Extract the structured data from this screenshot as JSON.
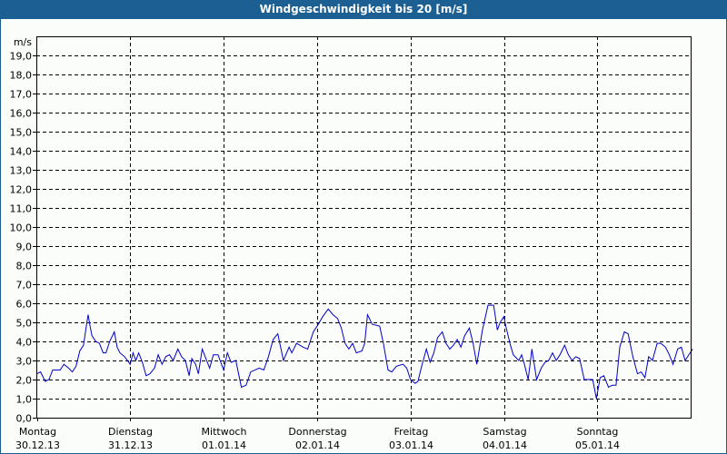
{
  "title": "Windgeschwindigkeit bis 20 [m/s]",
  "colors": {
    "title_bg": "#1c5f92",
    "title_fg": "#ffffff",
    "line": "#0000c8",
    "grid": "#000000",
    "background": "#fbfdfb"
  },
  "chart_data": {
    "type": "line",
    "title": "Windgeschwindigkeit bis 20 [m/s]",
    "xlabel": "",
    "ylabel": "m/s",
    "ylim": [
      0,
      20
    ],
    "yticks": [
      "0,0",
      "1,0",
      "2,0",
      "3,0",
      "4,0",
      "5,0",
      "6,0",
      "7,0",
      "8,0",
      "9,0",
      "10,0",
      "11,0",
      "12,0",
      "13,0",
      "14,0",
      "15,0",
      "16,0",
      "17,0",
      "18,0",
      "19,0"
    ],
    "grid": true,
    "legend": null,
    "x_categories": [
      {
        "day": "Montag",
        "date": "30.12.13"
      },
      {
        "day": "Dienstag",
        "date": "31.12.13"
      },
      {
        "day": "Mittwoch",
        "date": "01.01.14"
      },
      {
        "day": "Donnerstag",
        "date": "02.01.14"
      },
      {
        "day": "Freitag",
        "date": "03.01.14"
      },
      {
        "day": "Samstag",
        "date": "04.01.14"
      },
      {
        "day": "Sonntag",
        "date": "05.01.14"
      }
    ],
    "x_unit": "days since Montag 30.12.13 00:00 (0..6.9)",
    "series": [
      {
        "name": "Windgeschwindigkeit",
        "points": [
          [
            0.0,
            2.3
          ],
          [
            0.04,
            2.4
          ],
          [
            0.09,
            1.9
          ],
          [
            0.13,
            2.0
          ],
          [
            0.17,
            2.5
          ],
          [
            0.21,
            2.5
          ],
          [
            0.25,
            2.5
          ],
          [
            0.29,
            2.8
          ],
          [
            0.34,
            2.6
          ],
          [
            0.38,
            2.4
          ],
          [
            0.42,
            2.7
          ],
          [
            0.46,
            3.5
          ],
          [
            0.5,
            3.8
          ],
          [
            0.53,
            4.8
          ],
          [
            0.55,
            5.4
          ],
          [
            0.57,
            4.8
          ],
          [
            0.59,
            4.3
          ],
          [
            0.63,
            4.0
          ],
          [
            0.67,
            3.9
          ],
          [
            0.71,
            3.4
          ],
          [
            0.74,
            3.4
          ],
          [
            0.78,
            4.0
          ],
          [
            0.83,
            4.5
          ],
          [
            0.86,
            3.7
          ],
          [
            0.89,
            3.4
          ],
          [
            0.94,
            3.2
          ],
          [
            1.0,
            2.8
          ],
          [
            1.03,
            3.4
          ],
          [
            1.06,
            3.0
          ],
          [
            1.09,
            3.4
          ],
          [
            1.13,
            2.9
          ],
          [
            1.17,
            2.2
          ],
          [
            1.21,
            2.3
          ],
          [
            1.26,
            2.6
          ],
          [
            1.3,
            3.3
          ],
          [
            1.34,
            2.8
          ],
          [
            1.38,
            3.2
          ],
          [
            1.42,
            3.3
          ],
          [
            1.46,
            3.0
          ],
          [
            1.51,
            3.6
          ],
          [
            1.55,
            3.2
          ],
          [
            1.59,
            3.0
          ],
          [
            1.63,
            2.2
          ],
          [
            1.66,
            3.1
          ],
          [
            1.7,
            2.8
          ],
          [
            1.73,
            2.3
          ],
          [
            1.77,
            3.6
          ],
          [
            1.81,
            3.1
          ],
          [
            1.85,
            2.6
          ],
          [
            1.89,
            3.3
          ],
          [
            1.94,
            3.3
          ],
          [
            2.0,
            2.5
          ],
          [
            2.04,
            3.4
          ],
          [
            2.08,
            2.9
          ],
          [
            2.13,
            3.0
          ],
          [
            2.19,
            1.6
          ],
          [
            2.24,
            1.7
          ],
          [
            2.29,
            2.4
          ],
          [
            2.38,
            2.6
          ],
          [
            2.43,
            2.5
          ],
          [
            2.48,
            3.2
          ],
          [
            2.53,
            4.1
          ],
          [
            2.58,
            4.4
          ],
          [
            2.64,
            3.0
          ],
          [
            2.7,
            3.7
          ],
          [
            2.73,
            3.4
          ],
          [
            2.78,
            3.9
          ],
          [
            2.85,
            3.7
          ],
          [
            2.9,
            3.6
          ],
          [
            2.96,
            4.5
          ],
          [
            3.0,
            4.8
          ],
          [
            3.06,
            5.3
          ],
          [
            3.12,
            5.7
          ],
          [
            3.17,
            5.4
          ],
          [
            3.22,
            5.2
          ],
          [
            3.26,
            4.7
          ],
          [
            3.3,
            3.9
          ],
          [
            3.34,
            3.6
          ],
          [
            3.38,
            3.9
          ],
          [
            3.42,
            3.4
          ],
          [
            3.48,
            3.5
          ],
          [
            3.51,
            3.9
          ],
          [
            3.54,
            5.4
          ],
          [
            3.59,
            4.9
          ],
          [
            3.67,
            4.8
          ],
          [
            3.71,
            3.9
          ],
          [
            3.76,
            2.5
          ],
          [
            3.8,
            2.4
          ],
          [
            3.85,
            2.7
          ],
          [
            3.92,
            2.8
          ],
          [
            3.96,
            2.6
          ],
          [
            4.0,
            2.0
          ],
          [
            4.05,
            1.8
          ],
          [
            4.08,
            1.9
          ],
          [
            4.12,
            2.7
          ],
          [
            4.17,
            3.6
          ],
          [
            4.21,
            2.9
          ],
          [
            4.25,
            3.4
          ],
          [
            4.29,
            4.2
          ],
          [
            4.34,
            4.5
          ],
          [
            4.38,
            3.9
          ],
          [
            4.42,
            3.6
          ],
          [
            4.46,
            3.8
          ],
          [
            4.5,
            4.1
          ],
          [
            4.54,
            3.7
          ],
          [
            4.58,
            4.3
          ],
          [
            4.63,
            4.7
          ],
          [
            4.67,
            3.9
          ],
          [
            4.71,
            2.8
          ],
          [
            4.77,
            4.6
          ],
          [
            4.83,
            5.9
          ],
          [
            4.89,
            5.9
          ],
          [
            4.93,
            4.6
          ],
          [
            4.96,
            5.0
          ],
          [
            5.0,
            5.3
          ],
          [
            5.02,
            4.8
          ],
          [
            5.07,
            3.8
          ],
          [
            5.1,
            3.3
          ],
          [
            5.16,
            3.0
          ],
          [
            5.19,
            3.3
          ],
          [
            5.22,
            2.8
          ],
          [
            5.26,
            2.0
          ],
          [
            5.3,
            3.6
          ],
          [
            5.35,
            2.0
          ],
          [
            5.4,
            2.6
          ],
          [
            5.44,
            2.9
          ],
          [
            5.48,
            3.0
          ],
          [
            5.52,
            3.4
          ],
          [
            5.56,
            3.0
          ],
          [
            5.6,
            3.3
          ],
          [
            5.65,
            3.8
          ],
          [
            5.69,
            3.3
          ],
          [
            5.73,
            3.0
          ],
          [
            5.77,
            3.2
          ],
          [
            5.81,
            3.1
          ],
          [
            5.86,
            2.0
          ],
          [
            5.91,
            2.0
          ],
          [
            5.95,
            2.0
          ],
          [
            5.99,
            1.0
          ],
          [
            6.03,
            2.1
          ],
          [
            6.07,
            2.2
          ],
          [
            6.12,
            1.6
          ],
          [
            6.16,
            1.7
          ],
          [
            6.2,
            1.7
          ],
          [
            6.24,
            3.7
          ],
          [
            6.29,
            4.5
          ],
          [
            6.33,
            4.4
          ],
          [
            6.38,
            3.2
          ],
          [
            6.43,
            2.3
          ],
          [
            6.47,
            2.4
          ],
          [
            6.51,
            2.1
          ],
          [
            6.55,
            3.2
          ],
          [
            6.59,
            3.0
          ],
          [
            6.64,
            3.9
          ],
          [
            6.68,
            3.9
          ],
          [
            6.73,
            3.7
          ],
          [
            6.77,
            3.3
          ],
          [
            6.81,
            2.8
          ],
          [
            6.86,
            3.6
          ],
          [
            6.9,
            3.7
          ],
          [
            6.94,
            3.0
          ],
          [
            7.02,
            3.6
          ]
        ]
      }
    ]
  }
}
